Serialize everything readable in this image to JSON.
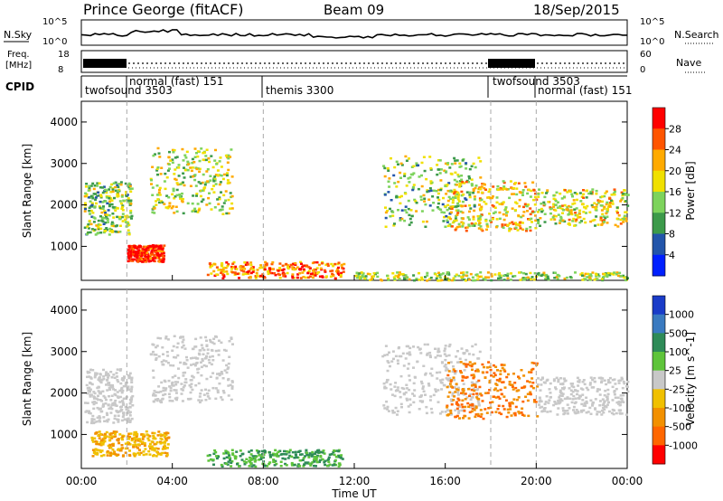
{
  "header": {
    "station": "Prince George (fitACF)",
    "beam": "Beam 09",
    "date": "18/Sep/2015"
  },
  "noise_panel": {
    "left_label": "N.Sky",
    "right_label": "N.Search",
    "ticks_left": [
      "10^5",
      "10^0"
    ],
    "ticks_right": [
      "10^5",
      "10^0"
    ]
  },
  "freq_panel": {
    "left_label_1": "Freq.",
    "left_label_2": "[MHz]",
    "right_label": "Nave",
    "ticks_left": [
      "18",
      "8"
    ],
    "ticks_right": [
      "60",
      "0"
    ]
  },
  "cpid_panel": {
    "label": "CPID",
    "modes": [
      {
        "name": "twofsound 3503",
        "start_hr": 0.0
      },
      {
        "name": "normal (fast) 151",
        "start_hr": 2.0
      },
      {
        "name": "themis 3300",
        "start_hr": 8.0
      },
      {
        "name": "twofsound 3503",
        "start_hr": 18.0
      },
      {
        "name": "normal (fast) 151",
        "start_hr": 20.0
      }
    ]
  },
  "time_axis": {
    "label": "Time UT",
    "ticks": [
      "00:00",
      "04:00",
      "08:00",
      "12:00",
      "16:00",
      "20:00",
      "00:00"
    ]
  },
  "range_axis": {
    "label": "Slant Range [km]",
    "ticks": [
      "1000",
      "2000",
      "3000",
      "4000"
    ]
  },
  "power_colorbar": {
    "label": "Power [dB]",
    "ticks": [
      "28",
      "24",
      "20",
      "16",
      "12",
      "8",
      "4"
    ],
    "colors": [
      "#ff0000",
      "#ff5500",
      "#ffaa00",
      "#f0e000",
      "#7dd35c",
      "#3c9a4a",
      "#2255aa",
      "#0020ff"
    ]
  },
  "velocity_colorbar": {
    "label": "Velocity [m s^-1]",
    "ticks": [
      "1000",
      "500",
      "100",
      "25",
      "-25",
      "-100",
      "-500",
      "-1000"
    ],
    "colors": [
      "#1a3cc8",
      "#3a7ac0",
      "#2e8b57",
      "#5ec43a",
      "#c8c8c8",
      "#f0c000",
      "#f29000",
      "#ff6600",
      "#ff0000"
    ]
  },
  "chart_data": [
    {
      "type": "heatmap",
      "title": "Power",
      "xlabel": "Time UT",
      "ylabel": "Slant Range [km]",
      "xlim": [
        0,
        24
      ],
      "ylim": [
        180,
        4500
      ],
      "colorbar_label": "Power [dB]",
      "x_ticks": [
        "00:00",
        "04:00",
        "08:00",
        "12:00",
        "16:00",
        "20:00",
        "00:00"
      ],
      "y_ticks": [
        1000,
        2000,
        3000,
        4000
      ],
      "colorbar_ticks": [
        4,
        8,
        12,
        16,
        20,
        24,
        28
      ],
      "regions": [
        {
          "t": [
            0.1,
            2.2
          ],
          "r": [
            1300,
            2600
          ],
          "value": 12
        },
        {
          "t": [
            2.0,
            3.6
          ],
          "r": [
            650,
            1050
          ],
          "value": 28
        },
        {
          "t": [
            3.0,
            6.6
          ],
          "r": [
            1800,
            3400
          ],
          "value": 14
        },
        {
          "t": [
            5.5,
            11.5
          ],
          "r": [
            250,
            650
          ],
          "value": 22
        },
        {
          "t": [
            13.2,
            17.5
          ],
          "r": [
            1500,
            3200
          ],
          "value": 12
        },
        {
          "t": [
            16.0,
            20.0
          ],
          "r": [
            1400,
            2600
          ],
          "value": 18
        },
        {
          "t": [
            20.0,
            24.0
          ],
          "r": [
            1500,
            2400
          ],
          "value": 16
        },
        {
          "t": [
            12.0,
            24.0
          ],
          "r": [
            200,
            400
          ],
          "value": 14
        }
      ]
    },
    {
      "type": "heatmap",
      "title": "Velocity",
      "xlabel": "Time UT",
      "ylabel": "Slant Range [km]",
      "xlim": [
        0,
        24
      ],
      "ylim": [
        180,
        4500
      ],
      "colorbar_label": "Velocity [m s^-1]",
      "x_ticks": [
        "00:00",
        "04:00",
        "08:00",
        "12:00",
        "16:00",
        "20:00",
        "00:00"
      ],
      "y_ticks": [
        1000,
        2000,
        3000,
        4000
      ],
      "colorbar_ticks": [
        1000,
        500,
        100,
        25,
        -25,
        -100,
        -500,
        -1000
      ],
      "regions": [
        {
          "t": [
            0.1,
            2.2
          ],
          "r": [
            1300,
            2600
          ],
          "value": 0
        },
        {
          "t": [
            0.4,
            3.8
          ],
          "r": [
            500,
            1100
          ],
          "value": -100
        },
        {
          "t": [
            3.0,
            6.6
          ],
          "r": [
            1800,
            3400
          ],
          "value": 0
        },
        {
          "t": [
            5.5,
            11.5
          ],
          "r": [
            250,
            650
          ],
          "value": 100
        },
        {
          "t": [
            13.2,
            17.5
          ],
          "r": [
            1500,
            3200
          ],
          "value": 0
        },
        {
          "t": [
            16.0,
            20.0
          ],
          "r": [
            1400,
            2800
          ],
          "value": -500
        },
        {
          "t": [
            20.0,
            24.0
          ],
          "r": [
            1500,
            2400
          ],
          "value": 0
        }
      ]
    }
  ]
}
